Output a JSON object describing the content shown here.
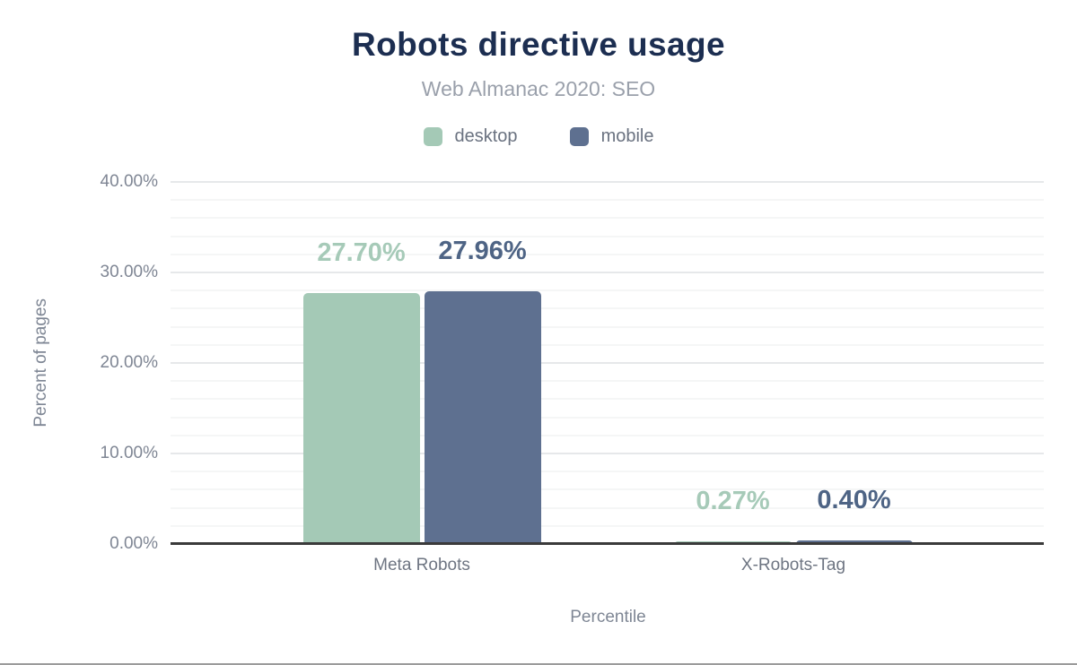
{
  "chart_data": {
    "type": "bar",
    "title": "Robots directive usage",
    "subtitle": "Web Almanac 2020: SEO",
    "categories": [
      "Meta Robots",
      "X-Robots-Tag"
    ],
    "series": [
      {
        "name": "desktop",
        "color": "#a4c9b6",
        "label_color": "#a6cab8",
        "values": [
          27.7,
          0.27
        ],
        "value_labels": [
          "27.70%",
          "0.27%"
        ]
      },
      {
        "name": "mobile",
        "color": "#5e7090",
        "label_color": "#4e6485",
        "values": [
          27.96,
          0.4
        ],
        "value_labels": [
          "27.96%",
          "0.40%"
        ]
      }
    ],
    "xlabel": "Percentile",
    "ylabel": "Percent of pages",
    "ylim": [
      0,
      40
    ],
    "y_major_ticks": [
      "0.00%",
      "10.00%",
      "20.00%",
      "30.00%",
      "40.00%"
    ],
    "y_major_step": 10,
    "y_minor_step": 2,
    "grid": true,
    "legend_position": "top"
  }
}
